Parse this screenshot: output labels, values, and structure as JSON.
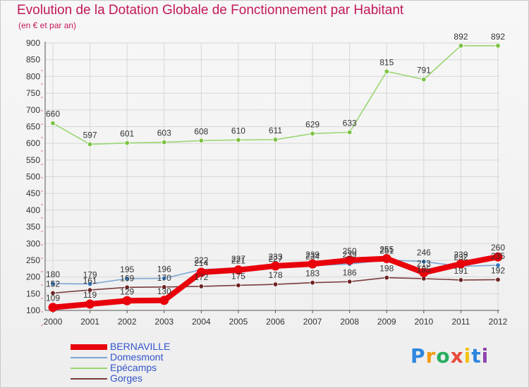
{
  "header": {
    "title": "Evolution de la Dotation Globale de Fonctionnement par Habitant",
    "subtitle": "(en € et par an)"
  },
  "brand": {
    "name": "Proxiti",
    "letters": [
      "P",
      "r",
      "o",
      "x",
      "i",
      "t",
      "i"
    ],
    "letter_colors": [
      "#2e86de",
      "#f39c12",
      "#27ae60",
      "#e74c3c",
      "#f1c40f",
      "#2e86de",
      "#8e44ad"
    ]
  },
  "chart_data": {
    "type": "line",
    "title": "Evolution de la Dotation Globale de Fonctionnement par Habitant",
    "subtitle": "(en € et par an)",
    "xlabel": "",
    "ylabel": "",
    "x": [
      "2000",
      "2001",
      "2002",
      "2003",
      "2004",
      "2005",
      "2006",
      "2007",
      "2008",
      "2009",
      "2010",
      "2011",
      "2012"
    ],
    "ylim": [
      100,
      900
    ],
    "yticks": [
      100,
      150,
      200,
      250,
      300,
      350,
      400,
      450,
      500,
      550,
      600,
      650,
      700,
      750,
      800,
      850,
      900
    ],
    "grid": true,
    "legend_position": "bottom-left",
    "series": [
      {
        "name": "BERNAVILLE",
        "color": "#e8000b",
        "point_color": "#e8000b",
        "emphasis": "bold",
        "values": [
          109,
          119,
          129,
          130,
          214,
          221,
          233,
          239,
          250,
          255,
          213,
          239,
          260
        ],
        "labels": [
          "109",
          "119",
          "129",
          "130",
          "214",
          "221",
          "233",
          "239",
          "250",
          "255",
          "213",
          "239",
          "260"
        ]
      },
      {
        "name": "Domesmont",
        "color": "#7ba7d4",
        "point_color": "#3377bb",
        "emphasis": "normal",
        "values": [
          180,
          179,
          195,
          196,
          222,
          227,
          227,
          234,
          239,
          251,
          246,
          232,
          235
        ],
        "labels": [
          "180",
          "179",
          "195",
          "196",
          "222",
          "227",
          "227",
          "234",
          "239",
          "251",
          "246",
          "232",
          "235"
        ]
      },
      {
        "name": "Epécamps",
        "color": "#99d673",
        "point_color": "#7cc242",
        "emphasis": "normal",
        "values": [
          660,
          597,
          601,
          603,
          608,
          610,
          611,
          629,
          633,
          815,
          791,
          892,
          892
        ],
        "labels": [
          "660",
          "597",
          "601",
          "603",
          "608",
          "610",
          "611",
          "629",
          "633",
          "815",
          "791",
          "892",
          "892"
        ]
      },
      {
        "name": "Gorges",
        "color": "#7a3b3b",
        "point_color": "#6e2323",
        "emphasis": "normal",
        "values": [
          152,
          161,
          169,
          170,
          172,
          175,
          178,
          183,
          186,
          198,
          195,
          191,
          192
        ],
        "labels": [
          "152",
          "161",
          "169",
          "170",
          "172",
          "175",
          "178",
          "183",
          "186",
          "198",
          "195",
          "191",
          "192"
        ]
      }
    ]
  }
}
